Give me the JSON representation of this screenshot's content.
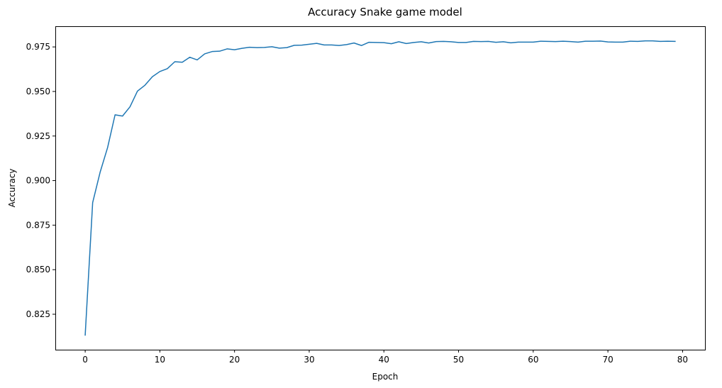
{
  "chart_data": {
    "type": "line",
    "title": "Accuracy Snake game model",
    "xlabel": "Epoch",
    "ylabel": "Accuracy",
    "xlim": [
      -4,
      83
    ],
    "ylim": [
      0.8051,
      0.9866
    ],
    "grid": false,
    "legend": "none",
    "x_ticks": [
      0,
      10,
      20,
      30,
      40,
      50,
      60,
      70,
      80
    ],
    "x_tick_labels": [
      "0",
      "10",
      "20",
      "30",
      "40",
      "50",
      "60",
      "70",
      "80"
    ],
    "y_ticks": [
      0.825,
      0.85,
      0.875,
      0.9,
      0.925,
      0.95,
      0.975
    ],
    "y_tick_labels": [
      "0.825",
      "0.850",
      "0.875",
      "0.900",
      "0.925",
      "0.950",
      "0.975"
    ],
    "series": [
      {
        "color": "#1f77b4",
        "x": [
          0,
          1,
          2,
          3,
          4,
          5,
          6,
          7,
          8,
          9,
          10,
          11,
          12,
          13,
          14,
          15,
          16,
          17,
          18,
          19,
          20,
          21,
          22,
          23,
          24,
          25,
          26,
          27,
          28,
          29,
          30,
          31,
          32,
          33,
          34,
          35,
          36,
          37,
          38,
          39,
          40,
          41,
          42,
          43,
          44,
          45,
          46,
          47,
          48,
          49,
          50,
          51,
          52,
          53,
          54,
          55,
          56,
          57,
          58,
          59,
          60,
          61,
          62,
          63,
          64,
          65,
          66,
          67,
          68,
          69,
          70,
          71,
          72,
          73,
          74,
          75,
          76,
          77,
          78,
          79
        ],
        "values": [
          0.8133,
          0.8876,
          0.9047,
          0.9185,
          0.9369,
          0.9362,
          0.9414,
          0.9502,
          0.9535,
          0.9583,
          0.9612,
          0.9628,
          0.9667,
          0.9664,
          0.9692,
          0.9677,
          0.9711,
          0.9724,
          0.9726,
          0.9739,
          0.9734,
          0.9742,
          0.9748,
          0.9746,
          0.9747,
          0.9751,
          0.9743,
          0.9746,
          0.9759,
          0.976,
          0.9765,
          0.977,
          0.9761,
          0.9761,
          0.9758,
          0.9763,
          0.9772,
          0.9758,
          0.9776,
          0.9775,
          0.9774,
          0.9768,
          0.9779,
          0.9769,
          0.9775,
          0.9779,
          0.9772,
          0.978,
          0.9781,
          0.9779,
          0.9775,
          0.9775,
          0.9781,
          0.978,
          0.9781,
          0.9776,
          0.9779,
          0.9773,
          0.9777,
          0.9777,
          0.9777,
          0.9782,
          0.9781,
          0.978,
          0.9782,
          0.978,
          0.9777,
          0.9782,
          0.9782,
          0.9783,
          0.9778,
          0.9777,
          0.9777,
          0.9782,
          0.9781,
          0.9784,
          0.9784,
          0.9781,
          0.9782,
          0.9781
        ]
      }
    ]
  }
}
